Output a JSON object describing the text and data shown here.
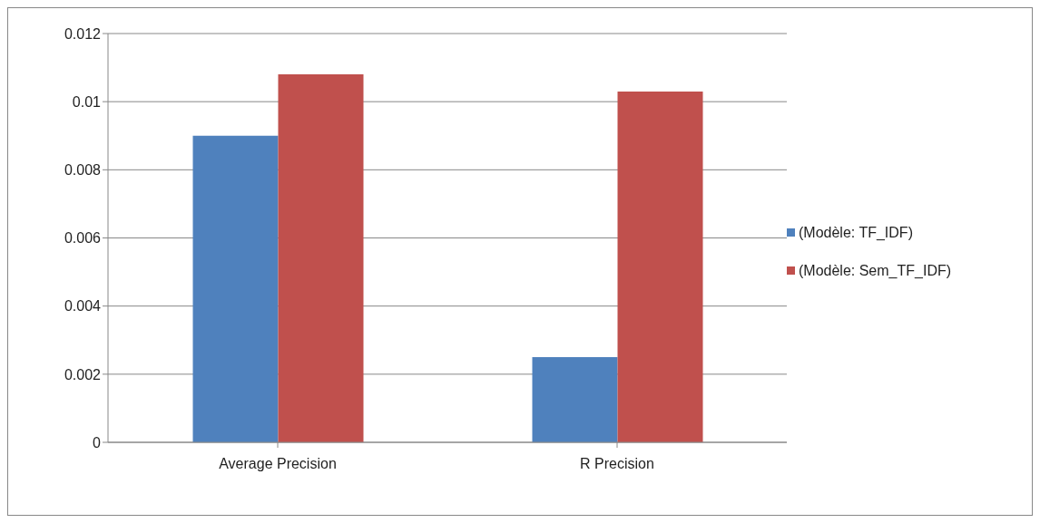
{
  "chart_data": {
    "type": "bar",
    "categories": [
      "Average Precision",
      "R Precision"
    ],
    "series": [
      {
        "name": "(Modèle: TF_IDF)",
        "color": "#4f81bd",
        "values": [
          0.009,
          0.0025
        ]
      },
      {
        "name": "(Modèle: Sem_TF_IDF)",
        "color": "#c0504d",
        "values": [
          0.0108,
          0.0103
        ]
      }
    ],
    "ylim": [
      0,
      0.012
    ],
    "yticks": [
      0,
      0.002,
      0.004,
      0.006,
      0.008,
      0.01,
      0.012
    ],
    "grid": "y",
    "legend": "right"
  }
}
